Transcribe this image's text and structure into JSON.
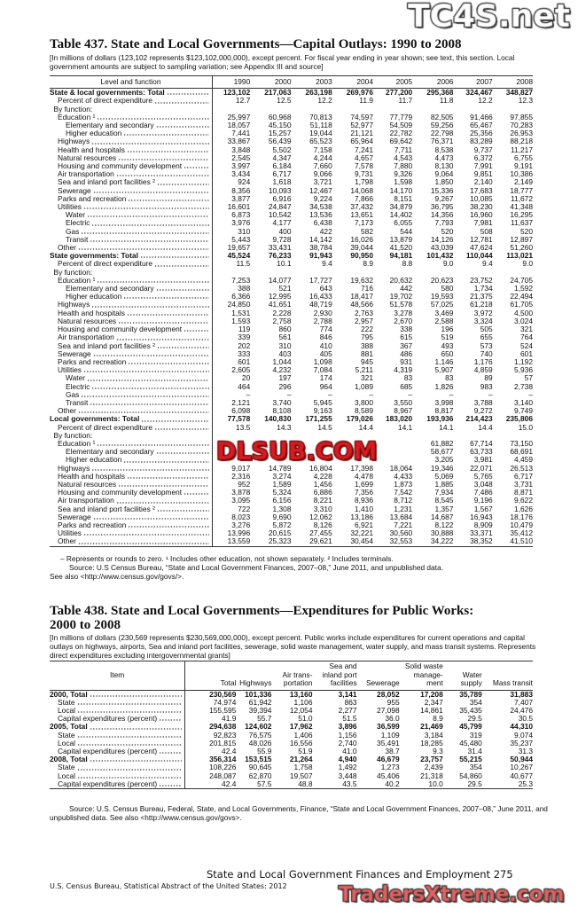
{
  "watermarks": {
    "top_right": "TC4S.net",
    "center": "DLSUB.COM",
    "bottom": "TradersXtreme.com"
  },
  "table437": {
    "title": "Table 437. State and Local Governments—Capital Outlays: 1990 to 2008",
    "headnote": "[In millions of dollars (123,102 represents $123,102,000,000), except percent. For fiscal year ending in year shown; see text, this section. Local government amounts are subject to sampling variation; see Appendix III and source]",
    "columns": [
      "Level and function",
      "1990",
      "2000",
      "2003",
      "2004",
      "2005",
      "2006",
      "2007",
      "2008"
    ],
    "rows": [
      {
        "label": "State & local governments: Total",
        "level": 0,
        "bold": true,
        "values": [
          "123,102",
          "217,063",
          "263,198",
          "269,976",
          "277,200",
          "295,368",
          "324,467",
          "348,827"
        ]
      },
      {
        "label": "Percent of direct expenditure",
        "level": 1,
        "values": [
          "12.7",
          "12.5",
          "12.2",
          "11.9",
          "11.7",
          "11.8",
          "12.2",
          "12.3"
        ]
      },
      {
        "label": "By function:",
        "level": 0.5,
        "values": []
      },
      {
        "label": "Education ¹",
        "level": 1,
        "values": [
          "25,997",
          "60,968",
          "70,813",
          "74,597",
          "77,779",
          "82,505",
          "91,466",
          "97,855"
        ]
      },
      {
        "label": "Elementary and secondary",
        "level": 2,
        "values": [
          "18,057",
          "45,150",
          "51,118",
          "52,977",
          "54,509",
          "59,256",
          "65,467",
          "70,283"
        ]
      },
      {
        "label": "Higher education",
        "level": 2,
        "values": [
          "7,441",
          "15,257",
          "19,044",
          "21,121",
          "22,782",
          "22,798",
          "25,356",
          "26,953"
        ]
      },
      {
        "label": "Highways",
        "level": 1,
        "values": [
          "33,867",
          "56,439",
          "65,523",
          "65,964",
          "69,642",
          "76,371",
          "83,289",
          "88,218"
        ]
      },
      {
        "label": "Health and hospitals",
        "level": 1,
        "values": [
          "3,848",
          "5,502",
          "7,158",
          "7,241",
          "7,711",
          "8,538",
          "9,737",
          "11,217"
        ]
      },
      {
        "label": "Natural resources",
        "level": 1,
        "values": [
          "2,545",
          "4,347",
          "4,244",
          "4,657",
          "4,543",
          "4,473",
          "6,372",
          "6,755"
        ]
      },
      {
        "label": "Housing and community development",
        "level": 1,
        "values": [
          "3,997",
          "6,184",
          "7,660",
          "7,578",
          "7,880",
          "8,130",
          "7,991",
          "9,191"
        ]
      },
      {
        "label": "Air transportation",
        "level": 1,
        "values": [
          "3,434",
          "6,717",
          "9,066",
          "9,731",
          "9,326",
          "9,064",
          "9,851",
          "10,386"
        ]
      },
      {
        "label": "Sea and inland port facilities ²",
        "level": 1,
        "values": [
          "924",
          "1,618",
          "3,721",
          "1,798",
          "1,598",
          "1,850",
          "2,140",
          "2,149"
        ]
      },
      {
        "label": "Sewerage",
        "level": 1,
        "values": [
          "8,356",
          "10,093",
          "12,467",
          "14,068",
          "14,170",
          "15,336",
          "17,683",
          "18,777"
        ]
      },
      {
        "label": "Parks and recreation",
        "level": 1,
        "values": [
          "3,877",
          "6,916",
          "9,224",
          "7,866",
          "8,151",
          "9,267",
          "10,085",
          "11,672"
        ]
      },
      {
        "label": "Utilities",
        "level": 1,
        "values": [
          "16,601",
          "24,847",
          "34,538",
          "37,432",
          "34,879",
          "36,795",
          "38,230",
          "41,348"
        ]
      },
      {
        "label": "Water",
        "level": 2,
        "values": [
          "6,873",
          "10,542",
          "13,536",
          "13,651",
          "14,402",
          "14,356",
          "16,960",
          "16,295"
        ]
      },
      {
        "label": "Electric",
        "level": 2,
        "values": [
          "3,976",
          "4,177",
          "6,438",
          "7,173",
          "6,055",
          "7,793",
          "7,981",
          "11,637"
        ]
      },
      {
        "label": "Gas",
        "level": 2,
        "values": [
          "310",
          "400",
          "422",
          "582",
          "544",
          "520",
          "508",
          "520"
        ]
      },
      {
        "label": "Transit",
        "level": 2,
        "values": [
          "5,443",
          "9,728",
          "14,142",
          "16,026",
          "13,879",
          "14,126",
          "12,781",
          "12,897"
        ]
      },
      {
        "label": "Other",
        "level": 1,
        "values": [
          "19,657",
          "33,431",
          "38,784",
          "39,044",
          "41,520",
          "43,039",
          "47,624",
          "51,260"
        ]
      },
      {
        "label": "State governments: Total",
        "level": 0,
        "bold": true,
        "values": [
          "45,524",
          "76,233",
          "91,943",
          "90,950",
          "94,181",
          "101,432",
          "110,044",
          "113,021"
        ]
      },
      {
        "label": "Percent of direct expenditure",
        "level": 1,
        "values": [
          "11.5",
          "10.1",
          "9.4",
          "8.9",
          "8.8",
          "9.0",
          "9.4",
          "9.0"
        ]
      },
      {
        "label": "By function:",
        "level": 0.5,
        "values": []
      },
      {
        "label": "Education ¹",
        "level": 1,
        "values": [
          "7,253",
          "14,077",
          "17,727",
          "19,632",
          "20,632",
          "20,623",
          "23,752",
          "24,705"
        ]
      },
      {
        "label": "Elementary and secondary",
        "level": 2,
        "values": [
          "388",
          "521",
          "643",
          "716",
          "442",
          "580",
          "1,734",
          "1,592"
        ]
      },
      {
        "label": "Higher education",
        "level": 2,
        "values": [
          "6,366",
          "12,995",
          "16,433",
          "18,417",
          "19,702",
          "19,593",
          "21,375",
          "22,494"
        ]
      },
      {
        "label": "Highways",
        "level": 1,
        "values": [
          "24,850",
          "41,651",
          "48,719",
          "48,566",
          "51,578",
          "57,025",
          "61,218",
          "61,705"
        ]
      },
      {
        "label": "Health and hospitals",
        "level": 1,
        "values": [
          "1,531",
          "2,228",
          "2,930",
          "2,763",
          "3,278",
          "3,469",
          "3,972",
          "4,500"
        ]
      },
      {
        "label": "Natural resources",
        "level": 1,
        "values": [
          "1,593",
          "2,758",
          "2,788",
          "2,957",
          "2,670",
          "2,588",
          "3,324",
          "3,024"
        ]
      },
      {
        "label": "Housing and community development",
        "level": 1,
        "values": [
          "119",
          "860",
          "774",
          "222",
          "338",
          "196",
          "505",
          "321"
        ]
      },
      {
        "label": "Air transportation",
        "level": 1,
        "values": [
          "339",
          "561",
          "846",
          "795",
          "615",
          "519",
          "655",
          "764"
        ]
      },
      {
        "label": "Sea and inland port facilities ²",
        "level": 1,
        "values": [
          "202",
          "310",
          "410",
          "388",
          "367",
          "493",
          "573",
          "524"
        ]
      },
      {
        "label": "Sewerage",
        "level": 1,
        "values": [
          "333",
          "403",
          "405",
          "881",
          "486",
          "650",
          "740",
          "601"
        ]
      },
      {
        "label": "Parks and recreation",
        "level": 1,
        "values": [
          "601",
          "1,044",
          "1,098",
          "945",
          "931",
          "1,146",
          "1,176",
          "1,192"
        ]
      },
      {
        "label": "Utilities",
        "level": 1,
        "values": [
          "2,605",
          "4,232",
          "7,084",
          "5,211",
          "4,319",
          "5,907",
          "4,859",
          "5,936"
        ]
      },
      {
        "label": "Water",
        "level": 2,
        "values": [
          "20",
          "197",
          "174",
          "321",
          "83",
          "83",
          "89",
          "57"
        ]
      },
      {
        "label": "Electric",
        "level": 2,
        "values": [
          "464",
          "296",
          "964",
          "1,089",
          "685",
          "1,826",
          "983",
          "2,738"
        ]
      },
      {
        "label": "Gas",
        "level": 2,
        "values": [
          "–",
          "–",
          "–",
          "–",
          "–",
          "–",
          "–",
          "–"
        ]
      },
      {
        "label": "Transit",
        "level": 2,
        "values": [
          "2,121",
          "3,740",
          "5,945",
          "3,800",
          "3,550",
          "3,998",
          "3,788",
          "3,140"
        ]
      },
      {
        "label": "Other",
        "level": 1,
        "values": [
          "6,098",
          "8,108",
          "9,163",
          "8,589",
          "8,967",
          "8,817",
          "9,272",
          "9,749"
        ]
      },
      {
        "label": "Local governments: Total",
        "level": 0,
        "bold": true,
        "values": [
          "77,578",
          "140,830",
          "171,255",
          "179,026",
          "183,020",
          "193,936",
          "214,423",
          "235,806"
        ]
      },
      {
        "label": "Percent of direct expenditure",
        "level": 1,
        "values": [
          "13.5",
          "14.3",
          "14.5",
          "14.4",
          "14.1",
          "14.1",
          "14.4",
          "15.0"
        ]
      },
      {
        "label": "By function:",
        "level": 0.5,
        "values": []
      },
      {
        "label": "Education ¹",
        "level": 1,
        "values": [
          "",
          "",
          "",
          "",
          "",
          "61,882",
          "67,714",
          "73,150"
        ]
      },
      {
        "label": "Elementary and secondary",
        "level": 2,
        "values": [
          "",
          "",
          "",
          "",
          "",
          "58,677",
          "63,733",
          "68,691"
        ]
      },
      {
        "label": "Higher education",
        "level": 2,
        "values": [
          "",
          "",
          "",
          "",
          "",
          "3,205",
          "3,981",
          "4,459"
        ]
      },
      {
        "label": "Highways",
        "level": 1,
        "values": [
          "9,017",
          "14,789",
          "16,804",
          "17,398",
          "18,064",
          "19,346",
          "22,071",
          "26,513"
        ]
      },
      {
        "label": "Health and hospitals",
        "level": 1,
        "values": [
          "2,316",
          "3,274",
          "4,228",
          "4,478",
          "4,433",
          "5,069",
          "5,765",
          "6,717"
        ]
      },
      {
        "label": "Natural resources",
        "level": 1,
        "values": [
          "952",
          "1,589",
          "1,456",
          "1,699",
          "1,873",
          "1,885",
          "3,048",
          "3,731"
        ]
      },
      {
        "label": "Housing and community development",
        "level": 1,
        "values": [
          "3,878",
          "5,324",
          "6,886",
          "7,356",
          "7,542",
          "7,934",
          "7,486",
          "8,871"
        ]
      },
      {
        "label": "Air transportation",
        "level": 1,
        "values": [
          "3,095",
          "6,156",
          "8,221",
          "8,936",
          "8,712",
          "8,545",
          "9,196",
          "9,622"
        ]
      },
      {
        "label": "Sea and inland port facilities ²",
        "level": 1,
        "values": [
          "722",
          "1,308",
          "3,310",
          "1,410",
          "1,231",
          "1,357",
          "1,567",
          "1,626"
        ]
      },
      {
        "label": "Sewerage",
        "level": 1,
        "values": [
          "8,023",
          "9,690",
          "12,062",
          "13,186",
          "13,684",
          "14,687",
          "16,943",
          "18,176"
        ]
      },
      {
        "label": "Parks and recreation",
        "level": 1,
        "values": [
          "3,276",
          "5,872",
          "8,126",
          "6,921",
          "7,221",
          "8,122",
          "8,909",
          "10,479"
        ]
      },
      {
        "label": "Utilities",
        "level": 1,
        "values": [
          "13,996",
          "20,615",
          "27,455",
          "32,221",
          "30,560",
          "30,888",
          "33,371",
          "35,412"
        ]
      },
      {
        "label": "Other",
        "level": 1,
        "values": [
          "13,559",
          "25,323",
          "29,621",
          "30,454",
          "32,553",
          "34,222",
          "38,352",
          "41,510"
        ]
      }
    ],
    "footnote": "– Represents or rounds to zero. ¹ Includes other education, not shown separately. ² Includes terminals.",
    "source": "Source: U.S Census Bureau, “State and Local Government Finances, 2007–08,” June 2011, and unpublished data.",
    "see_also": "See also <http://www.census.gov/govs/>."
  },
  "table438": {
    "title_line1": "Table 438. State and Local Governments—Expenditures for Public Works:",
    "title_line2": "2000 to 2008",
    "headnote": "[In millions of dollars (230,569 represents $230,569,000,000), except percent. Public works include expenditures for current operations and capital outlays on highways, airports, Sea and inland port facilities, sewerage, solid waste management, water supply, and mass transit systems. Represents direct expenditures excluding intergovernmental grants]",
    "columns": [
      "Item",
      "Total",
      "Highways",
      "Air trans- portation",
      "Sea and inland port facilities",
      "Sewerage",
      "Solid waste manage- ment",
      "Water supply",
      "Mass transit"
    ],
    "rows": [
      {
        "label": "2000, Total",
        "level": 0,
        "bold": true,
        "values": [
          "230,569",
          "101,336",
          "13,160",
          "3,141",
          "28,052",
          "17,208",
          "35,789",
          "31,883"
        ]
      },
      {
        "label": "State",
        "level": 1,
        "values": [
          "74,974",
          "61,942",
          "1,106",
          "863",
          "955",
          "2,347",
          "354",
          "7,407"
        ]
      },
      {
        "label": "Local",
        "level": 1,
        "values": [
          "155,595",
          "39,394",
          "12,054",
          "2,277",
          "27,098",
          "14,861",
          "35,435",
          "24,476"
        ]
      },
      {
        "label": "Capital expenditures (percent)",
        "level": 1,
        "values": [
          "41.9",
          "55.7",
          "51.0",
          "51.5",
          "36.0",
          "8.9",
          "29.5",
          "30.5"
        ]
      },
      {
        "label": "2005, Total",
        "level": 0,
        "bold": true,
        "values": [
          "294,638",
          "124,602",
          "17,962",
          "3,896",
          "36,599",
          "21,469",
          "45,799",
          "44,310"
        ]
      },
      {
        "label": "State",
        "level": 1,
        "values": [
          "92,823",
          "76,575",
          "1,406",
          "1,156",
          "1,109",
          "3,184",
          "319",
          "9,074"
        ]
      },
      {
        "label": "Local",
        "level": 1,
        "values": [
          "201,815",
          "48,026",
          "16,556",
          "2,740",
          "35,491",
          "18,285",
          "45,480",
          "35,237"
        ]
      },
      {
        "label": "Capital expenditures (percent)",
        "level": 1,
        "values": [
          "42.4",
          "55.9",
          "51.9",
          "41.0",
          "38.7",
          "9.3",
          "31.4",
          "31.3"
        ]
      },
      {
        "label": "2008, Total",
        "level": 0,
        "bold": true,
        "values": [
          "356,314",
          "153,515",
          "21,264",
          "4,940",
          "46,679",
          "23,757",
          "55,215",
          "50,944"
        ]
      },
      {
        "label": "State",
        "level": 1,
        "values": [
          "108,226",
          "90,645",
          "1,758",
          "1,492",
          "1,273",
          "2,439",
          "354",
          "10,267"
        ]
      },
      {
        "label": "Local",
        "level": 1,
        "values": [
          "248,087",
          "62,870",
          "19,507",
          "3,448",
          "45,406",
          "21,318",
          "54,860",
          "40,677"
        ]
      },
      {
        "label": "Capital expenditures (percent)",
        "level": 1,
        "values": [
          "42.4",
          "57.5",
          "48.8",
          "43.5",
          "40.2",
          "10.0",
          "29.5",
          "25.3"
        ]
      }
    ],
    "source": "Source: U.S. Census Bureau, Federal, State, and Local Governments, Finance, “State and Local Government Finances, 2007–08,” June 2011, and unpublished data. See also <http://www.census.gov/govs>."
  },
  "page_footer": {
    "section": "State and Local Government Finances and Employment  275",
    "publication": "U.S. Census Bureau, Statistical Abstract of the United States: 2012"
  }
}
